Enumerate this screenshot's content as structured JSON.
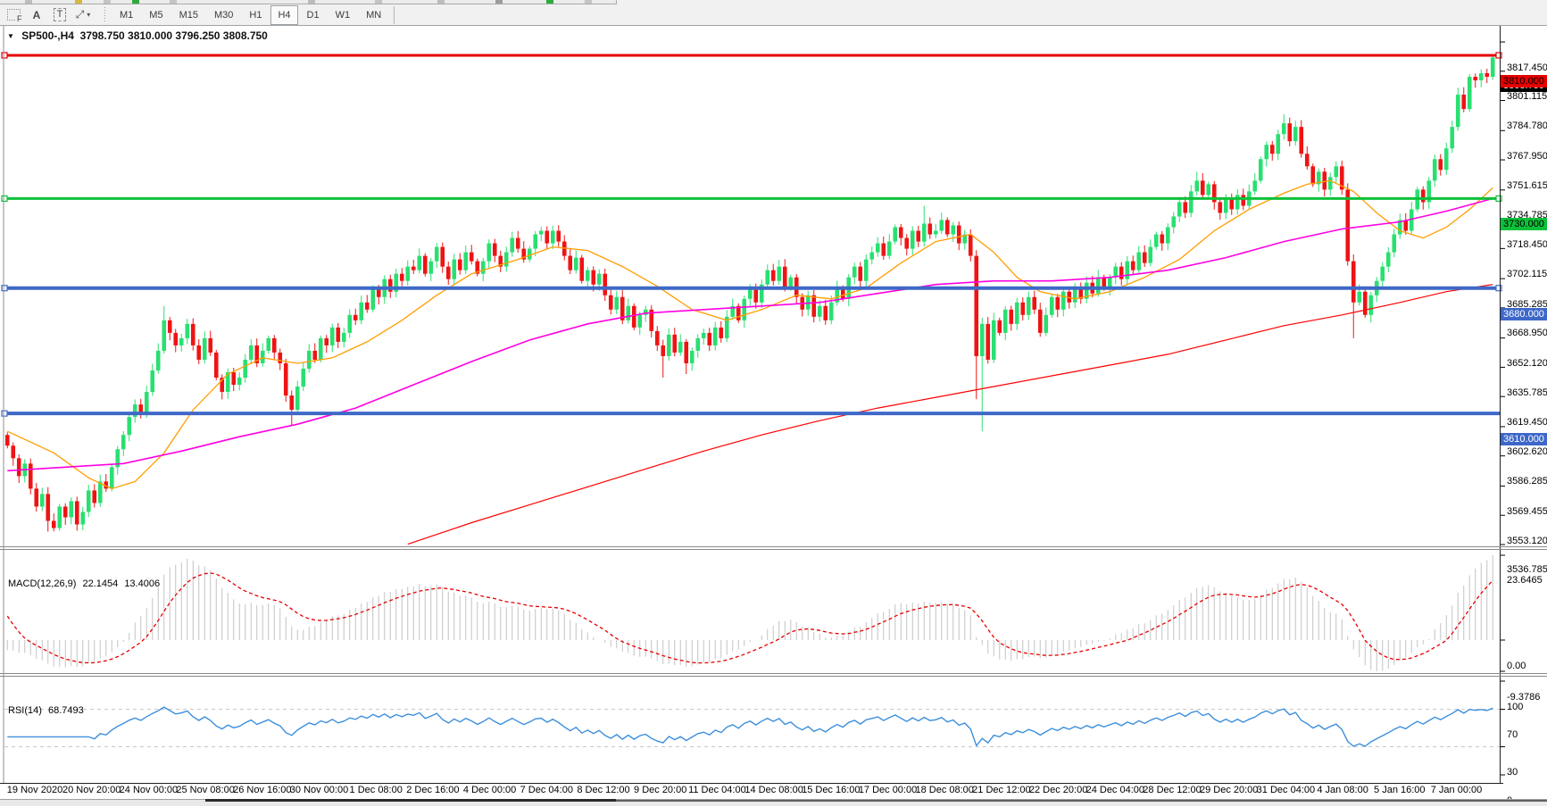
{
  "toolbar": {
    "icons": [
      {
        "name": "fibonacci-tool",
        "glyph": "F"
      },
      {
        "name": "text-tool",
        "glyph": "A"
      },
      {
        "name": "label-tool",
        "glyph": "T"
      },
      {
        "name": "arrow-tool",
        "glyph": "⤢",
        "caret": "▾"
      }
    ],
    "timeframes": [
      "M1",
      "M5",
      "M15",
      "M30",
      "H1",
      "H4",
      "D1",
      "W1",
      "MN"
    ],
    "active_timeframe": "H4"
  },
  "chart": {
    "title_symbol": "SP500-,H4",
    "title_ohlc": "3798.750 3810.000 3796.250 3808.750"
  },
  "axis": {
    "price_ticks": [
      "3817.450",
      "3801.115",
      "3784.780",
      "3767.950",
      "3751.615",
      "3734.785",
      "3718.450",
      "3702.115",
      "3685.285",
      "3668.950",
      "3652.120",
      "3635.785",
      "3619.450",
      "3602.620",
      "3586.285",
      "3569.455",
      "3553.120",
      "3536.785"
    ],
    "time_labels": [
      "19 Nov 2020",
      "20 Nov 20:00",
      "24 Nov 00:00",
      "25 Nov 08:00",
      "26 Nov 16:00",
      "30 Nov 00:00",
      "1 Dec 08:00",
      "2 Dec 16:00",
      "4 Dec 00:00",
      "7 Dec 04:00",
      "8 Dec 12:00",
      "9 Dec 20:00",
      "11 Dec 04:00",
      "14 Dec 08:00",
      "15 Dec 16:00",
      "17 Dec 00:00",
      "18 Dec 08:00",
      "21 Dec 12:00",
      "22 Dec 20:00",
      "24 Dec 04:00",
      "28 Dec 12:00",
      "29 Dec 20:00",
      "31 Dec 04:00",
      "4 Jan 08:00",
      "5 Jan 16:00",
      "7 Jan 00:00"
    ]
  },
  "chart_data": {
    "type": "candlestick",
    "symbol_period": "SP500-,H4",
    "current_bar": {
      "open": 3798.75,
      "high": 3810.0,
      "low": 3796.25,
      "close": 3808.75
    },
    "price_range_visible": [
      3536.785,
      3817.45
    ],
    "candle_up_color": "#2adf71",
    "candle_down_color": "#ee1414",
    "first_open": 3598,
    "closes": [
      3592,
      3585,
      3575,
      3582,
      3568,
      3558,
      3565,
      3550,
      3546,
      3558,
      3552,
      3561,
      3548,
      3555,
      3567,
      3560,
      3572,
      3568,
      3580,
      3590,
      3598,
      3608,
      3615,
      3610,
      3622,
      3634,
      3645,
      3662,
      3655,
      3648,
      3652,
      3660,
      3648,
      3640,
      3652,
      3644,
      3630,
      3622,
      3633,
      3626,
      3630,
      3640,
      3648,
      3638,
      3645,
      3652,
      3644,
      3638,
      3620,
      3612,
      3625,
      3635,
      3645,
      3640,
      3652,
      3648,
      3658,
      3650,
      3655,
      3665,
      3662,
      3672,
      3668,
      3680,
      3675,
      3685,
      3678,
      3688,
      3684,
      3692,
      3690,
      3698,
      3688,
      3695,
      3703,
      3692,
      3685,
      3696,
      3690,
      3700,
      3695,
      3688,
      3695,
      3705,
      3698,
      3692,
      3700,
      3708,
      3702,
      3696,
      3702,
      3710,
      3712,
      3705,
      3712,
      3706,
      3698,
      3690,
      3697,
      3684,
      3690,
      3682,
      3688,
      3676,
      3668,
      3675,
      3662,
      3670,
      3658,
      3665,
      3668,
      3656,
      3648,
      3642,
      3654,
      3644,
      3650,
      3638,
      3645,
      3652,
      3655,
      3648,
      3658,
      3652,
      3664,
      3670,
      3662,
      3674,
      3680,
      3672,
      3682,
      3690,
      3684,
      3692,
      3680,
      3686,
      3675,
      3668,
      3676,
      3664,
      3670,
      3662,
      3672,
      3680,
      3674,
      3686,
      3692,
      3684,
      3696,
      3700,
      3705,
      3698,
      3706,
      3714,
      3708,
      3702,
      3712,
      3706,
      3716,
      3710,
      3712,
      3718,
      3710,
      3715,
      3705,
      3710,
      3698,
      3642,
      3660,
      3640,
      3662,
      3655,
      3668,
      3660,
      3672,
      3665,
      3675,
      3668,
      3655,
      3665,
      3675,
      3668,
      3678,
      3672,
      3680,
      3674,
      3683,
      3677,
      3686,
      3680,
      3686,
      3692,
      3685,
      3695,
      3690,
      3700,
      3694,
      3703,
      3710,
      3705,
      3714,
      3720,
      3728,
      3722,
      3734,
      3740,
      3732,
      3738,
      3728,
      3722,
      3730,
      3724,
      3732,
      3726,
      3734,
      3740,
      3752,
      3760,
      3755,
      3766,
      3772,
      3762,
      3770,
      3755,
      3748,
      3738,
      3745,
      3735,
      3742,
      3748,
      3735,
      3695,
      3672,
      3678,
      3665,
      3676,
      3684,
      3692,
      3700,
      3710,
      3718,
      3712,
      3724,
      3735,
      3728,
      3740,
      3752,
      3746,
      3758,
      3770,
      3788,
      3780,
      3798,
      3796,
      3800,
      3798,
      3808.75
    ],
    "wick_overrides": {
      "7": {
        "low": 3544
      },
      "27": {
        "high": 3670
      },
      "49": {
        "low": 3603
      },
      "113": {
        "low": 3630
      },
      "117": {
        "low": 3632
      },
      "158": {
        "high": 3726
      },
      "167": {
        "low": 3618
      },
      "168": {
        "low": 3600
      },
      "205": {
        "high": 3745
      },
      "220": {
        "high": 3777
      },
      "232": {
        "low": 3652
      },
      "256": {
        "high": 3810,
        "low": 3796.25
      }
    },
    "hlines": [
      {
        "price": 3810.0,
        "label": "3810.000",
        "color": "#e60000",
        "badge_text_color": "#000000",
        "width": 3,
        "right_handle": true
      },
      {
        "price": 3730.0,
        "label": "3730.000",
        "color": "#0cc13a",
        "badge_text_color": "#000000",
        "width": 3,
        "right_handle": true
      },
      {
        "price": 3680.0,
        "label": "3680.000",
        "color": "#3e68c8",
        "badge_text_color": "#ffffff",
        "width": 4,
        "right_handle": true
      },
      {
        "price": 3610.0,
        "label": "3610.000",
        "color": "#3e68c8",
        "badge_text_color": "#ffffff",
        "width": 4,
        "right_handle": false
      }
    ],
    "current_price_badge": {
      "label": "3808.750",
      "bg": "#000000",
      "text_color": "#ffffff"
    },
    "moving_averages": [
      {
        "name": "fast-ma",
        "color": "#ff9e00",
        "width": 1.3,
        "anchors": [
          [
            0,
            3600
          ],
          [
            8,
            3588
          ],
          [
            14,
            3574
          ],
          [
            18,
            3568
          ],
          [
            22,
            3572
          ],
          [
            27,
            3588
          ],
          [
            32,
            3612
          ],
          [
            38,
            3632
          ],
          [
            44,
            3641
          ],
          [
            50,
            3638
          ],
          [
            56,
            3641
          ],
          [
            62,
            3650
          ],
          [
            68,
            3662
          ],
          [
            74,
            3676
          ],
          [
            80,
            3688
          ],
          [
            88,
            3696
          ],
          [
            94,
            3703
          ],
          [
            100,
            3701
          ],
          [
            106,
            3692
          ],
          [
            112,
            3681
          ],
          [
            118,
            3668
          ],
          [
            124,
            3662
          ],
          [
            130,
            3668
          ],
          [
            136,
            3676
          ],
          [
            142,
            3674
          ],
          [
            148,
            3680
          ],
          [
            154,
            3694
          ],
          [
            160,
            3706
          ],
          [
            166,
            3710
          ],
          [
            170,
            3700
          ],
          [
            174,
            3686
          ],
          [
            178,
            3678
          ],
          [
            184,
            3674
          ],
          [
            190,
            3678
          ],
          [
            196,
            3686
          ],
          [
            202,
            3696
          ],
          [
            208,
            3712
          ],
          [
            214,
            3724
          ],
          [
            220,
            3733
          ],
          [
            224,
            3738
          ],
          [
            228,
            3740
          ],
          [
            232,
            3734
          ],
          [
            236,
            3722
          ],
          [
            240,
            3712
          ],
          [
            244,
            3708
          ],
          [
            248,
            3714
          ],
          [
            252,
            3724
          ],
          [
            256,
            3736
          ]
        ]
      },
      {
        "name": "medium-ma",
        "color": "#ff00e1",
        "width": 1.6,
        "anchors": [
          [
            0,
            3578
          ],
          [
            10,
            3580
          ],
          [
            20,
            3582
          ],
          [
            30,
            3589
          ],
          [
            40,
            3597
          ],
          [
            50,
            3604
          ],
          [
            60,
            3613
          ],
          [
            70,
            3626
          ],
          [
            80,
            3639
          ],
          [
            90,
            3651
          ],
          [
            100,
            3660
          ],
          [
            110,
            3666
          ],
          [
            120,
            3668
          ],
          [
            130,
            3670
          ],
          [
            140,
            3672
          ],
          [
            150,
            3677
          ],
          [
            160,
            3682
          ],
          [
            170,
            3684
          ],
          [
            180,
            3684
          ],
          [
            190,
            3686
          ],
          [
            200,
            3690
          ],
          [
            210,
            3697
          ],
          [
            220,
            3706
          ],
          [
            230,
            3713
          ],
          [
            240,
            3717
          ],
          [
            248,
            3723
          ],
          [
            256,
            3730
          ]
        ]
      },
      {
        "name": "slow-ma",
        "color": "#ff0000",
        "width": 1.2,
        "anchors": [
          [
            69,
            3537
          ],
          [
            80,
            3549
          ],
          [
            90,
            3559
          ],
          [
            100,
            3569
          ],
          [
            110,
            3579
          ],
          [
            120,
            3589
          ],
          [
            130,
            3598
          ],
          [
            140,
            3606
          ],
          [
            150,
            3613
          ],
          [
            160,
            3619
          ],
          [
            170,
            3625
          ],
          [
            180,
            3631
          ],
          [
            190,
            3637
          ],
          [
            200,
            3643
          ],
          [
            210,
            3651
          ],
          [
            220,
            3659
          ],
          [
            230,
            3665
          ],
          [
            240,
            3672
          ],
          [
            248,
            3678
          ],
          [
            256,
            3682
          ]
        ]
      }
    ],
    "macd": {
      "label": "MACD(12,26,9)",
      "value1": "22.1454",
      "value2": "13.4006",
      "axis_ticks": [
        "23.6465",
        "0.00",
        "-9.3786"
      ],
      "range": [
        -9.3786,
        23.6465
      ],
      "histogram_color": "#c3c3c3",
      "signal_color": "#e60000"
    },
    "rsi": {
      "label": "RSI(14)",
      "value": "68.7493",
      "axis_ticks": [
        "100",
        "70",
        "30",
        "0"
      ],
      "range": [
        0,
        100
      ],
      "levels": [
        70,
        30
      ],
      "line_color": "#3d8fdc",
      "level_color": "#c8c8c8"
    }
  }
}
